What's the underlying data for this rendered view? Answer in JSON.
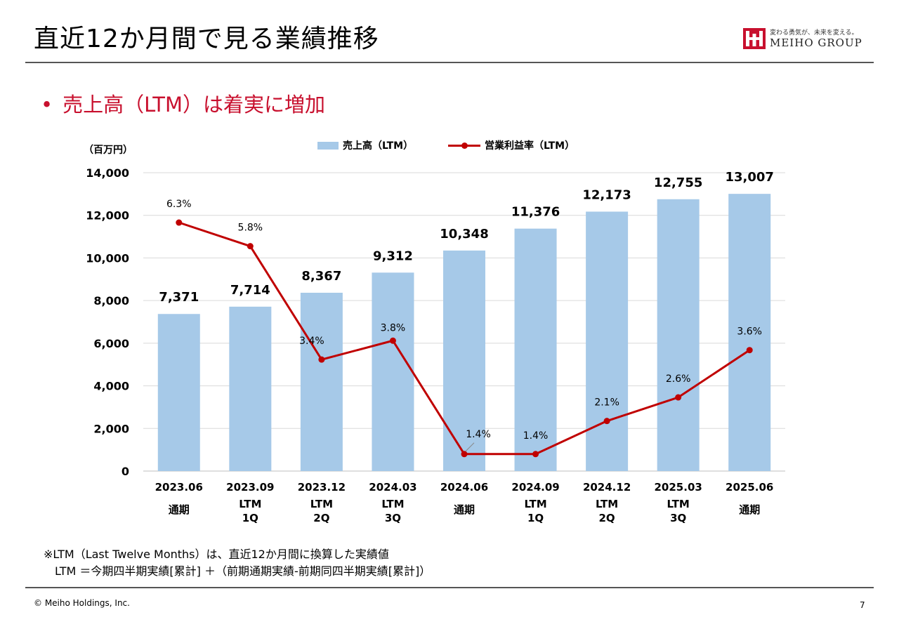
{
  "slide": {
    "title": "直近12か月間で見る業績推移",
    "subtitle": "売上高（LTM）は着実に増加",
    "bullet": "•",
    "logo": {
      "tagline": "変わる勇気が、未来を変える。",
      "name": "MEIHO GROUP"
    },
    "footnote_line1": "※LTM（Last Twelve Months）は、直近12か月間に換算した実績値",
    "footnote_line2": "LTM ＝今期四半期実績[累計] ＋（前期通期実績-前期同四半期実績[累計]）",
    "copyright": "© Meiho Holdings, Inc.",
    "page_number": "7"
  },
  "chart_data": {
    "type": "bar",
    "unit_label": "（百万円）",
    "categories": [
      "2023.06",
      "2023.09",
      "2023.12",
      "2024.03",
      "2024.06",
      "2024.09",
      "2024.12",
      "2025.03",
      "2025.06"
    ],
    "category_sublabels": [
      [
        "通期"
      ],
      [
        "LTM",
        "1Q"
      ],
      [
        "LTM",
        "2Q"
      ],
      [
        "LTM",
        "3Q"
      ],
      [
        "通期"
      ],
      [
        "LTM",
        "1Q"
      ],
      [
        "LTM",
        "2Q"
      ],
      [
        "LTM",
        "3Q"
      ],
      [
        "通期"
      ]
    ],
    "series": [
      {
        "name": "売上高（LTM）",
        "type": "bar",
        "color": "#a6c9e8",
        "values": [
          7371,
          7714,
          8367,
          9312,
          10348,
          11376,
          12173,
          12755,
          13007
        ],
        "labels": [
          "7,371",
          "7,714",
          "8,367",
          "9,312",
          "10,348",
          "11,376",
          "12,173",
          "12,755",
          "13,007"
        ]
      },
      {
        "name": "営業利益率（LTM）",
        "type": "line",
        "color": "#c00000",
        "values": [
          6.3,
          5.8,
          3.4,
          3.8,
          1.4,
          1.4,
          2.1,
          2.6,
          3.6
        ],
        "labels": [
          "6.3%",
          "5.8%",
          "3.4%",
          "3.8%",
          "1.4%",
          "1.4%",
          "2.1%",
          "2.6%",
          "3.6%"
        ]
      }
    ],
    "y_ticks": [
      "0",
      "2,000",
      "4,000",
      "6,000",
      "8,000",
      "10,000",
      "12,000",
      "14,000"
    ],
    "ylim": [
      0,
      14000
    ],
    "grid": true,
    "legend_position": "top"
  }
}
